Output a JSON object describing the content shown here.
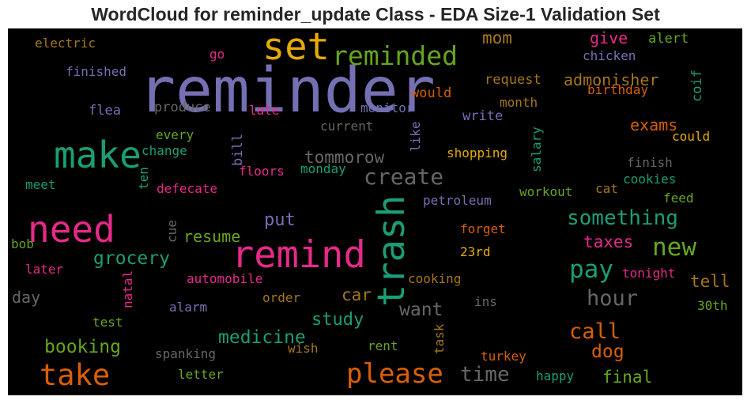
{
  "chart_data": {
    "type": "wordcloud",
    "title": "WordCloud for reminder_update Class - EDA Size-1 Validation Set",
    "words": [
      {
        "text": "reminder",
        "color": "#7570b3"
      },
      {
        "text": "set",
        "color": "#e6ab02"
      },
      {
        "text": "reminded",
        "color": "#66a61e"
      },
      {
        "text": "make",
        "color": "#1b9e77"
      },
      {
        "text": "need",
        "color": "#e7298a"
      },
      {
        "text": "remind",
        "color": "#e7298a"
      },
      {
        "text": "trash",
        "color": "#1b9e77"
      },
      {
        "text": "take",
        "color": "#d95f02"
      },
      {
        "text": "please",
        "color": "#d95f02"
      },
      {
        "text": "create",
        "color": "#666666"
      },
      {
        "text": "something",
        "color": "#1b9e77"
      },
      {
        "text": "new",
        "color": "#66a61e"
      },
      {
        "text": "pay",
        "color": "#1b9e77"
      },
      {
        "text": "hour",
        "color": "#666666"
      },
      {
        "text": "call",
        "color": "#d95f02"
      },
      {
        "text": "time",
        "color": "#666666"
      },
      {
        "text": "grocery",
        "color": "#1b9e77"
      },
      {
        "text": "booking",
        "color": "#66a61e"
      },
      {
        "text": "medicine",
        "color": "#1b9e77"
      },
      {
        "text": "study",
        "color": "#1b9e77"
      },
      {
        "text": "want",
        "color": "#666666"
      },
      {
        "text": "car",
        "color": "#a6761d"
      },
      {
        "text": "put",
        "color": "#7570b3"
      },
      {
        "text": "resume",
        "color": "#66a61e"
      },
      {
        "text": "tommorow",
        "color": "#666666"
      },
      {
        "text": "dog",
        "color": "#d95f02"
      },
      {
        "text": "final",
        "color": "#66a61e"
      },
      {
        "text": "tell",
        "color": "#a6761d"
      },
      {
        "text": "taxes",
        "color": "#e7298a"
      },
      {
        "text": "exams",
        "color": "#d95f02"
      },
      {
        "text": "admonisher",
        "color": "#a6761d"
      },
      {
        "text": "give",
        "color": "#e7298a"
      },
      {
        "text": "mom",
        "color": "#a6761d"
      },
      {
        "text": "alert",
        "color": "#66a61e"
      },
      {
        "text": "chicken",
        "color": "#7570b3"
      },
      {
        "text": "coif",
        "color": "#1b9e77"
      },
      {
        "text": "request",
        "color": "#a6761d"
      },
      {
        "text": "birthday",
        "color": "#d95f02"
      },
      {
        "text": "would",
        "color": "#d95f02"
      },
      {
        "text": "month",
        "color": "#a6761d"
      },
      {
        "text": "write",
        "color": "#7570b3"
      },
      {
        "text": "monitor",
        "color": "#7570b3"
      },
      {
        "text": "could",
        "color": "#e6ab02"
      },
      {
        "text": "salary",
        "color": "#1b9e77"
      },
      {
        "text": "finish",
        "color": "#666666"
      },
      {
        "text": "cookies",
        "color": "#1b9e77"
      },
      {
        "text": "shopping",
        "color": "#e6ab02"
      },
      {
        "text": "like",
        "color": "#7570b3"
      },
      {
        "text": "current",
        "color": "#666666"
      },
      {
        "text": "late",
        "color": "#e7298a"
      },
      {
        "text": "produce",
        "color": "#666666"
      },
      {
        "text": "flea",
        "color": "#7570b3"
      },
      {
        "text": "finished",
        "color": "#7570b3"
      },
      {
        "text": "electric",
        "color": "#a6761d"
      },
      {
        "text": "go",
        "color": "#e7298a"
      },
      {
        "text": "every",
        "color": "#66a61e"
      },
      {
        "text": "change",
        "color": "#1b9e77"
      },
      {
        "text": "bill",
        "color": "#7570b3"
      },
      {
        "text": "floors",
        "color": "#e7298a"
      },
      {
        "text": "monday",
        "color": "#1b9e77"
      },
      {
        "text": "ten",
        "color": "#1b9e77"
      },
      {
        "text": "defecate",
        "color": "#e7298a"
      },
      {
        "text": "meet",
        "color": "#1b9e77"
      },
      {
        "text": "workout",
        "color": "#66a61e"
      },
      {
        "text": "cat",
        "color": "#a6761d"
      },
      {
        "text": "feed",
        "color": "#66a61e"
      },
      {
        "text": "petroleum",
        "color": "#7570b3"
      },
      {
        "text": "forget",
        "color": "#d95f02"
      },
      {
        "text": "23rd",
        "color": "#e6ab02"
      },
      {
        "text": "tonight",
        "color": "#e7298a"
      },
      {
        "text": "30th",
        "color": "#66a61e"
      },
      {
        "text": "cooking",
        "color": "#a6761d"
      },
      {
        "text": "ins",
        "color": "#666666"
      },
      {
        "text": "cue",
        "color": "#666666"
      },
      {
        "text": "bob",
        "color": "#66a61e"
      },
      {
        "text": "later",
        "color": "#e7298a"
      },
      {
        "text": "day",
        "color": "#666666"
      },
      {
        "text": "automobile",
        "color": "#e7298a"
      },
      {
        "text": "natal",
        "color": "#e7298a"
      },
      {
        "text": "alarm",
        "color": "#7570b3"
      },
      {
        "text": "order",
        "color": "#a6761d"
      },
      {
        "text": "test",
        "color": "#66a61e"
      },
      {
        "text": "task",
        "color": "#a6761d"
      },
      {
        "text": "rent",
        "color": "#66a61e"
      },
      {
        "text": "wish",
        "color": "#a6761d"
      },
      {
        "text": "spanking",
        "color": "#666666"
      },
      {
        "text": "letter",
        "color": "#66a61e"
      },
      {
        "text": "turkey",
        "color": "#d95f02"
      },
      {
        "text": "happy",
        "color": "#1b9e77"
      }
    ]
  }
}
